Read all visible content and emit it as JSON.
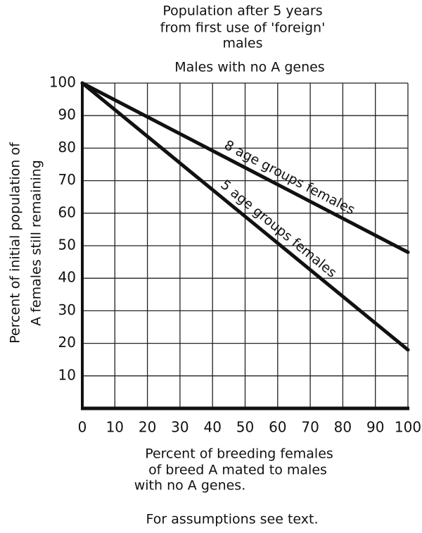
{
  "chart_data": {
    "type": "line",
    "title": [
      "Population after 5 years",
      "from first use of 'foreign'",
      "males"
    ],
    "subtitle": "Males with no A genes",
    "y_label": [
      "Percent of initial population of",
      "A females still remaining"
    ],
    "x_label": [
      "Percent of breeding females",
      "of breed A mated to males",
      "with no A genes."
    ],
    "annotation": "For assumptions see text.",
    "x": [
      0,
      100
    ],
    "series": [
      {
        "name": "8 age groups females",
        "color": "#111111",
        "values": [
          100,
          48
        ]
      },
      {
        "name": "5 age groups females",
        "color": "#111111",
        "values": [
          100,
          18
        ]
      }
    ],
    "xlim": [
      0,
      100
    ],
    "ylim": [
      0,
      100
    ],
    "xticks": [
      0,
      10,
      20,
      30,
      40,
      50,
      60,
      70,
      80,
      90,
      100
    ],
    "yticks": [
      10,
      20,
      30,
      40,
      50,
      60,
      70,
      80,
      90,
      100
    ],
    "grid": true
  }
}
